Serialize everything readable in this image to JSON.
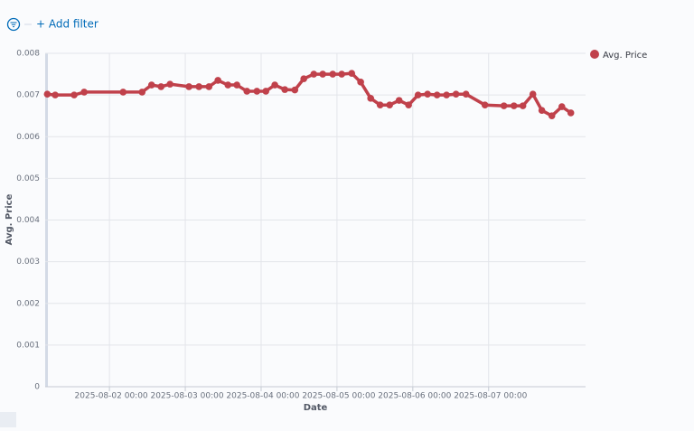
{
  "filter_bar": {
    "add_filter": "+ Add filter"
  },
  "chart_data": {
    "type": "line",
    "x_label": "Date",
    "y_label": "Avg. Price",
    "x": [
      "2025-08-01 04:20",
      "2025-08-01 06:50",
      "2025-08-01 12:50",
      "2025-08-01 16:00",
      "2025-08-02 04:20",
      "2025-08-02 10:20",
      "2025-08-02 13:20",
      "2025-08-02 16:20",
      "2025-08-02 19:10",
      "2025-08-03 01:10",
      "2025-08-03 04:20",
      "2025-08-03 07:30",
      "2025-08-03 10:20",
      "2025-08-03 13:30",
      "2025-08-03 16:20",
      "2025-08-03 19:30",
      "2025-08-03 22:40",
      "2025-08-04 01:30",
      "2025-08-04 04:20",
      "2025-08-04 07:30",
      "2025-08-04 10:40",
      "2025-08-04 13:30",
      "2025-08-04 16:40",
      "2025-08-04 19:30",
      "2025-08-04 22:40",
      "2025-08-05 01:30",
      "2025-08-05 04:40",
      "2025-08-05 07:30",
      "2025-08-05 10:40",
      "2025-08-05 13:40",
      "2025-08-05 16:40",
      "2025-08-05 19:40",
      "2025-08-05 22:40",
      "2025-08-06 01:40",
      "2025-08-06 04:40",
      "2025-08-06 07:40",
      "2025-08-06 10:40",
      "2025-08-06 13:40",
      "2025-08-06 16:50",
      "2025-08-06 22:50",
      "2025-08-07 04:50",
      "2025-08-07 08:00",
      "2025-08-07 10:50",
      "2025-08-07 14:00",
      "2025-08-07 16:50",
      "2025-08-07 20:00",
      "2025-08-07 23:10",
      "2025-08-08 02:00"
    ],
    "series": [
      {
        "name": "Avg. Price",
        "color": "#c0414b",
        "values": [
          0.00702,
          0.007,
          0.007,
          0.00707,
          0.00707,
          0.00707,
          0.00724,
          0.0072,
          0.00726,
          0.0072,
          0.0072,
          0.0072,
          0.00735,
          0.00724,
          0.00724,
          0.00709,
          0.00709,
          0.00709,
          0.00724,
          0.00713,
          0.00712,
          0.00739,
          0.0075,
          0.0075,
          0.0075,
          0.0075,
          0.00752,
          0.00731,
          0.00692,
          0.00676,
          0.00676,
          0.00687,
          0.00676,
          0.007,
          0.00702,
          0.007,
          0.007,
          0.00702,
          0.00702,
          0.00676,
          0.00674,
          0.00674,
          0.00674,
          0.00702,
          0.00663,
          0.0065,
          0.00672,
          0.00657
        ]
      }
    ],
    "xlim": [
      "2025-08-01 03:40",
      "2025-08-08 06:40"
    ],
    "xticks": [
      "2025-08-02 00:00",
      "2025-08-03 00:00",
      "2025-08-04 00:00",
      "2025-08-05 00:00",
      "2025-08-06 00:00",
      "2025-08-07 00:00"
    ],
    "ylim": [
      0,
      0.008
    ],
    "yticks": [
      0,
      0.001,
      0.002,
      0.003,
      0.004,
      0.005,
      0.006,
      0.007,
      0.008
    ],
    "grid": true,
    "legend": "right"
  }
}
